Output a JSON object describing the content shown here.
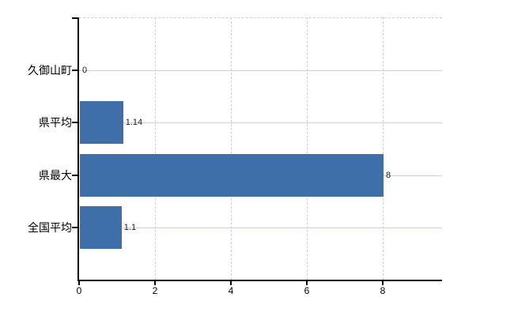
{
  "chart_data": {
    "type": "bar",
    "orientation": "horizontal",
    "title": "",
    "xlabel": "",
    "ylabel": "",
    "categories": [
      "久御山町",
      "県平均",
      "県最大",
      "全国平均"
    ],
    "values": [
      0,
      1.14,
      8,
      1.1
    ],
    "value_labels": [
      "0",
      "1.14",
      "8",
      "1.1"
    ],
    "x_ticks": [
      0,
      2,
      4,
      6,
      8
    ],
    "x_tick_labels": [
      "0",
      "2",
      "4",
      "6",
      "8"
    ],
    "xlim": [
      0,
      9.56
    ],
    "grid": "on",
    "legend": "none",
    "colors": {
      "bar": "#3e6fa8",
      "h_grid": "#cbd6cb",
      "v_grid": "#d2cfd6",
      "axis": "#000000",
      "text": "#000000",
      "value_label": "#1a1a1a",
      "background": "#ffffff"
    }
  }
}
